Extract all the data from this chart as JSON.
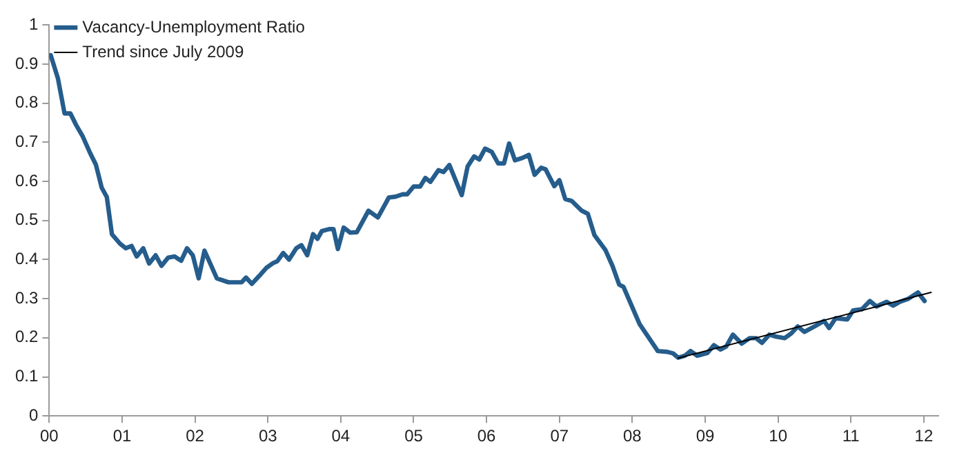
{
  "chart_data": {
    "type": "line",
    "legend": "top left",
    "grid": false,
    "marker": "none",
    "line_style": "solid",
    "xlim": [
      0,
      12.2
    ],
    "xticks": [
      {
        "value": 0,
        "label": "00"
      },
      {
        "value": 1,
        "label": "01"
      },
      {
        "value": 2,
        "label": "02"
      },
      {
        "value": 3,
        "label": "03"
      },
      {
        "value": 4,
        "label": "04"
      },
      {
        "value": 5,
        "label": "05"
      },
      {
        "value": 6,
        "label": "06"
      },
      {
        "value": 7,
        "label": "07"
      },
      {
        "value": 8,
        "label": "08"
      },
      {
        "value": 9,
        "label": "09"
      },
      {
        "value": 10,
        "label": "10"
      },
      {
        "value": 11,
        "label": "11"
      },
      {
        "value": 12,
        "label": "12"
      }
    ],
    "ylim": [
      0,
      1
    ],
    "yticks": [
      0,
      0.1,
      0.2,
      0.3,
      0.4,
      0.5,
      0.6,
      0.7,
      0.8,
      0.9,
      1
    ],
    "series": [
      {
        "name": "Vacancy-Unemployment Ratio",
        "color": "#255d8c",
        "x": [
          0.02,
          0.12,
          0.21,
          0.29,
          0.37,
          0.46,
          0.56,
          0.64,
          0.72,
          0.79,
          0.86,
          0.97,
          1.05,
          1.13,
          1.2,
          1.29,
          1.37,
          1.46,
          1.54,
          1.63,
          1.72,
          1.81,
          1.89,
          1.97,
          2.05,
          2.13,
          2.3,
          2.46,
          2.64,
          2.7,
          2.78,
          2.88,
          2.98,
          3.07,
          3.13,
          3.21,
          3.29,
          3.39,
          3.46,
          3.54,
          3.62,
          3.68,
          3.74,
          3.84,
          3.9,
          3.96,
          4.04,
          4.13,
          4.22,
          4.38,
          4.51,
          4.66,
          4.75,
          4.85,
          4.91,
          5.0,
          5.09,
          5.16,
          5.23,
          5.34,
          5.41,
          5.49,
          5.66,
          5.74,
          5.83,
          5.9,
          5.98,
          6.07,
          6.16,
          6.24,
          6.31,
          6.39,
          6.49,
          6.58,
          6.66,
          6.75,
          6.81,
          6.93,
          7.0,
          7.08,
          7.17,
          7.3,
          7.39,
          7.48,
          7.63,
          7.73,
          7.82,
          7.88,
          8.1,
          8.35,
          8.48,
          8.56,
          8.63,
          8.72,
          8.8,
          8.89,
          9.03,
          9.12,
          9.21,
          9.29,
          9.38,
          9.5,
          9.61,
          9.7,
          9.78,
          9.88,
          9.97,
          10.09,
          10.18,
          10.27,
          10.36,
          10.52,
          10.63,
          10.7,
          10.79,
          10.95,
          11.03,
          11.15,
          11.26,
          11.35,
          11.49,
          11.58,
          11.67,
          11.79,
          11.92,
          12.01
        ],
        "values": [
          0.923,
          0.863,
          0.774,
          0.774,
          0.744,
          0.715,
          0.673,
          0.643,
          0.584,
          0.56,
          0.465,
          0.441,
          0.429,
          0.435,
          0.408,
          0.429,
          0.39,
          0.411,
          0.384,
          0.405,
          0.408,
          0.397,
          0.429,
          0.411,
          0.352,
          0.423,
          0.352,
          0.342,
          0.342,
          0.354,
          0.338,
          0.358,
          0.379,
          0.391,
          0.396,
          0.417,
          0.4,
          0.429,
          0.437,
          0.411,
          0.465,
          0.453,
          0.473,
          0.478,
          0.478,
          0.427,
          0.482,
          0.469,
          0.47,
          0.525,
          0.508,
          0.559,
          0.561,
          0.567,
          0.567,
          0.587,
          0.587,
          0.609,
          0.599,
          0.629,
          0.624,
          0.642,
          0.565,
          0.638,
          0.664,
          0.656,
          0.684,
          0.676,
          0.646,
          0.646,
          0.697,
          0.654,
          0.66,
          0.668,
          0.617,
          0.635,
          0.631,
          0.588,
          0.603,
          0.555,
          0.55,
          0.526,
          0.517,
          0.463,
          0.425,
          0.383,
          0.336,
          0.33,
          0.235,
          0.166,
          0.164,
          0.16,
          0.149,
          0.154,
          0.166,
          0.154,
          0.161,
          0.181,
          0.17,
          0.178,
          0.208,
          0.185,
          0.199,
          0.199,
          0.187,
          0.208,
          0.203,
          0.199,
          0.211,
          0.229,
          0.215,
          0.231,
          0.243,
          0.225,
          0.25,
          0.247,
          0.27,
          0.273,
          0.294,
          0.28,
          0.292,
          0.282,
          0.292,
          0.3,
          0.316,
          0.294
        ]
      },
      {
        "name": "Trend since July 2009",
        "color": "#000000",
        "x": [
          8.63,
          12.1
        ],
        "values": [
          0.148,
          0.316
        ]
      }
    ]
  }
}
